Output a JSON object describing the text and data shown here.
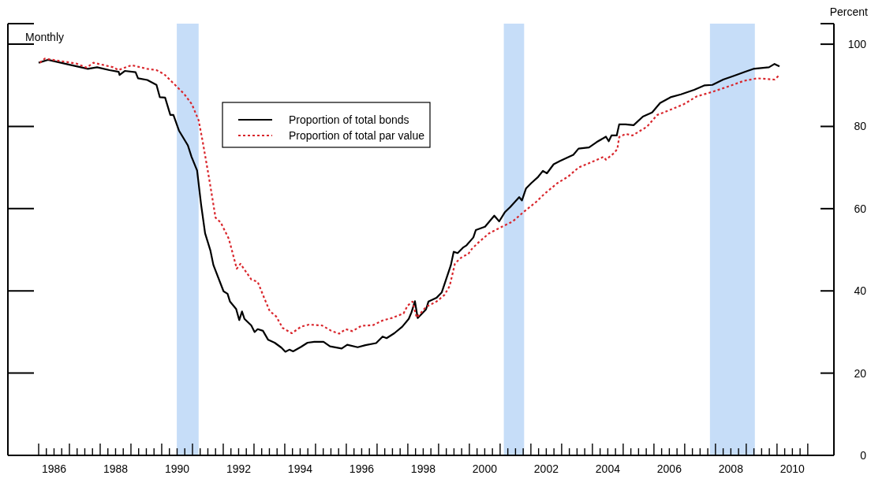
{
  "chart_data": {
    "type": "line",
    "ylabel": "Percent",
    "annotations": [
      "Monthly"
    ],
    "legend": "top left",
    "xlim": [
      1985,
      2011.85
    ],
    "ylim": [
      0,
      105
    ],
    "yticks": [
      0,
      20,
      40,
      60,
      80,
      100
    ],
    "xticks": [
      {
        "value": 1986,
        "label": null
      },
      {
        "value": 1986.25,
        "label": null
      },
      {
        "value": 1986.5,
        "label": "1986"
      },
      {
        "value": 1986.75,
        "label": null
      },
      {
        "value": 1987,
        "label": null
      },
      {
        "value": 1987.25,
        "label": null
      },
      {
        "value": 1987.5,
        "label": null
      },
      {
        "value": 1987.75,
        "label": null
      },
      {
        "value": 1988,
        "label": null
      },
      {
        "value": 1988.25,
        "label": null
      },
      {
        "value": 1988.5,
        "label": "1988"
      },
      {
        "value": 1988.75,
        "label": null
      },
      {
        "value": 1989,
        "label": null
      },
      {
        "value": 1989.25,
        "label": null
      },
      {
        "value": 1989.5,
        "label": null
      },
      {
        "value": 1989.75,
        "label": null
      },
      {
        "value": 1990,
        "label": null
      },
      {
        "value": 1990.25,
        "label": null
      },
      {
        "value": 1990.5,
        "label": "1990"
      },
      {
        "value": 1990.75,
        "label": null
      },
      {
        "value": 1991,
        "label": null
      },
      {
        "value": 1991.25,
        "label": null
      },
      {
        "value": 1991.5,
        "label": null
      },
      {
        "value": 1991.75,
        "label": null
      },
      {
        "value": 1992,
        "label": null
      },
      {
        "value": 1992.25,
        "label": null
      },
      {
        "value": 1992.5,
        "label": "1992"
      },
      {
        "value": 1992.75,
        "label": null
      },
      {
        "value": 1993,
        "label": null
      },
      {
        "value": 1993.25,
        "label": null
      },
      {
        "value": 1993.5,
        "label": null
      },
      {
        "value": 1993.75,
        "label": null
      },
      {
        "value": 1994,
        "label": null
      },
      {
        "value": 1994.25,
        "label": null
      },
      {
        "value": 1994.5,
        "label": "1994"
      },
      {
        "value": 1994.75,
        "label": null
      },
      {
        "value": 1995,
        "label": null
      },
      {
        "value": 1995.25,
        "label": null
      },
      {
        "value": 1995.5,
        "label": null
      },
      {
        "value": 1995.75,
        "label": null
      },
      {
        "value": 1996,
        "label": null
      },
      {
        "value": 1996.25,
        "label": null
      },
      {
        "value": 1996.5,
        "label": "1996"
      },
      {
        "value": 1996.75,
        "label": null
      },
      {
        "value": 1997,
        "label": null
      },
      {
        "value": 1997.25,
        "label": null
      },
      {
        "value": 1997.5,
        "label": null
      },
      {
        "value": 1997.75,
        "label": null
      },
      {
        "value": 1998,
        "label": null
      },
      {
        "value": 1998.25,
        "label": null
      },
      {
        "value": 1998.5,
        "label": "1998"
      },
      {
        "value": 1998.75,
        "label": null
      },
      {
        "value": 1999,
        "label": null
      },
      {
        "value": 1999.25,
        "label": null
      },
      {
        "value": 1999.5,
        "label": null
      },
      {
        "value": 1999.75,
        "label": null
      },
      {
        "value": 2000,
        "label": null
      },
      {
        "value": 2000.25,
        "label": null
      },
      {
        "value": 2000.5,
        "label": "2000"
      },
      {
        "value": 2000.75,
        "label": null
      },
      {
        "value": 2001,
        "label": null
      },
      {
        "value": 2001.25,
        "label": null
      },
      {
        "value": 2001.5,
        "label": null
      },
      {
        "value": 2001.75,
        "label": null
      },
      {
        "value": 2002,
        "label": null
      },
      {
        "value": 2002.25,
        "label": null
      },
      {
        "value": 2002.5,
        "label": "2002"
      },
      {
        "value": 2002.75,
        "label": null
      },
      {
        "value": 2003,
        "label": null
      },
      {
        "value": 2003.25,
        "label": null
      },
      {
        "value": 2003.5,
        "label": null
      },
      {
        "value": 2003.75,
        "label": null
      },
      {
        "value": 2004,
        "label": null
      },
      {
        "value": 2004.25,
        "label": null
      },
      {
        "value": 2004.5,
        "label": "2004"
      },
      {
        "value": 2004.75,
        "label": null
      },
      {
        "value": 2005,
        "label": null
      },
      {
        "value": 2005.25,
        "label": null
      },
      {
        "value": 2005.5,
        "label": null
      },
      {
        "value": 2005.75,
        "label": null
      },
      {
        "value": 2006,
        "label": null
      },
      {
        "value": 2006.25,
        "label": null
      },
      {
        "value": 2006.5,
        "label": "2006"
      },
      {
        "value": 2006.75,
        "label": null
      },
      {
        "value": 2007,
        "label": null
      },
      {
        "value": 2007.25,
        "label": null
      },
      {
        "value": 2007.5,
        "label": null
      },
      {
        "value": 2007.75,
        "label": null
      },
      {
        "value": 2008,
        "label": null
      },
      {
        "value": 2008.25,
        "label": null
      },
      {
        "value": 2008.5,
        "label": "2008"
      },
      {
        "value": 2008.75,
        "label": null
      },
      {
        "value": 2009,
        "label": null
      },
      {
        "value": 2009.25,
        "label": null
      },
      {
        "value": 2009.5,
        "label": null
      },
      {
        "value": 2009.75,
        "label": null
      },
      {
        "value": 2010,
        "label": null
      },
      {
        "value": 2010.25,
        "label": null
      },
      {
        "value": 2010.5,
        "label": "2010"
      },
      {
        "value": 2010.75,
        "label": null
      },
      {
        "value": 2011,
        "label": null
      }
    ],
    "bands": [
      {
        "axis": "x",
        "from": 1990.49,
        "to": 1991.2,
        "color": "#c6ddf8"
      },
      {
        "axis": "x",
        "from": 2001.12,
        "to": 2001.78,
        "color": "#c6ddf8"
      },
      {
        "axis": "x",
        "from": 2007.82,
        "to": 2009.28,
        "color": "#c6ddf8"
      }
    ],
    "series": [
      {
        "name": "Proportion of total bonds",
        "color": "#000000",
        "line_style": "solid",
        "x": [
          1986.0,
          1986.3,
          1987.0,
          1987.6,
          1987.9,
          1988.3,
          1988.6,
          1988.63,
          1988.8,
          1989.15,
          1989.23,
          1989.53,
          1989.83,
          1989.94,
          1990.11,
          1990.28,
          1990.38,
          1990.56,
          1990.85,
          1990.97,
          1991.15,
          1991.28,
          1991.41,
          1991.58,
          1991.68,
          1992.01,
          1992.14,
          1992.22,
          1992.42,
          1992.52,
          1992.61,
          1992.69,
          1992.91,
          1993.02,
          1993.12,
          1993.29,
          1993.46,
          1993.67,
          1993.89,
          1994.02,
          1994.15,
          1994.27,
          1994.53,
          1994.74,
          1994.96,
          1995.26,
          1995.47,
          1995.85,
          1996.03,
          1996.37,
          1996.62,
          1996.97,
          1997.18,
          1997.31,
          1997.56,
          1997.82,
          1998.03,
          1998.12,
          1998.23,
          1998.32,
          1998.59,
          1998.67,
          1998.93,
          1999.1,
          1999.4,
          1999.49,
          1999.62,
          1999.79,
          1999.91,
          2000.13,
          2000.21,
          2000.51,
          2000.81,
          2000.97,
          2001.15,
          2001.33,
          2001.62,
          2001.71,
          2001.84,
          2002.01,
          2002.22,
          2002.39,
          2002.52,
          2002.74,
          2002.95,
          2003.38,
          2003.55,
          2003.89,
          2004.14,
          2004.44,
          2004.53,
          2004.62,
          2004.79,
          2004.87,
          2005.08,
          2005.34,
          2005.64,
          2005.94,
          2006.2,
          2006.54,
          2006.88,
          2007.31,
          2007.65,
          2007.9,
          2008.25,
          2008.6,
          2008.97,
          2009.23,
          2009.74,
          2009.92,
          2010.08
        ],
        "values": [
          95.5,
          96.2,
          95,
          94,
          94.4,
          93.7,
          93.3,
          92.5,
          93.5,
          93.2,
          91.7,
          91.3,
          90.1,
          87.1,
          87,
          82.8,
          82.8,
          79,
          75.4,
          72.6,
          69.3,
          61,
          54,
          49.9,
          46.3,
          39.9,
          39.3,
          37.4,
          35.6,
          32.9,
          35,
          33.2,
          31.6,
          30,
          30.7,
          30.3,
          28.1,
          27.4,
          26.2,
          25.2,
          25.7,
          25.3,
          26.4,
          27.4,
          27.6,
          27.6,
          26.5,
          26,
          26.9,
          26.3,
          26.8,
          27.3,
          28.9,
          28.5,
          29.7,
          31.3,
          33.2,
          34.8,
          37.5,
          33.4,
          35.5,
          37.4,
          38.3,
          39.6,
          46.3,
          49.5,
          49.2,
          50.5,
          51.1,
          53,
          54.8,
          55.6,
          58.3,
          56.9,
          59.1,
          60.4,
          62.8,
          62,
          64.9,
          66.2,
          67.6,
          69.2,
          68.6,
          70.8,
          71.6,
          73.1,
          74.6,
          74.9,
          76.2,
          77.5,
          76.4,
          77.8,
          77.8,
          80.5,
          80.5,
          80.3,
          82.4,
          83.4,
          85.7,
          87.1,
          87.8,
          88.9,
          90,
          90.1,
          91.4,
          92.3,
          93.3,
          94,
          94.4,
          95.2,
          94.6
        ]
      },
      {
        "name": "Proportion of total par value",
        "color": "#d9262c",
        "line_style": "dotted",
        "x": [
          1986.04,
          1986.2,
          1986.45,
          1987.22,
          1987.56,
          1987.78,
          1988.42,
          1988.59,
          1989.02,
          1989.53,
          1989.83,
          1990.08,
          1990.38,
          1990.73,
          1990.98,
          1991.2,
          1991.33,
          1991.54,
          1991.75,
          1991.88,
          1991.92,
          1992.18,
          1992.44,
          1992.56,
          1992.91,
          1993.12,
          1993.33,
          1993.51,
          1993.72,
          1993.93,
          1994.23,
          1994.53,
          1994.79,
          1995.21,
          1995.51,
          1995.77,
          1995.98,
          1996.2,
          1996.49,
          1996.88,
          1997.18,
          1997.48,
          1997.86,
          1997.99,
          1998.15,
          1998.29,
          1998.59,
          1998.93,
          1999.19,
          1999.36,
          1999.53,
          1999.7,
          1999.79,
          1999.96,
          2000.08,
          2000.3,
          2000.64,
          2000.98,
          2001.41,
          2001.75,
          2002.18,
          2002.44,
          2002.86,
          2003.21,
          2003.55,
          2004.06,
          2004.36,
          2004.44,
          2004.7,
          2004.81,
          2004.87,
          2005.08,
          2005.3,
          2005.77,
          2006.11,
          2006.45,
          2006.97,
          2007.39,
          2007.9,
          2008.33,
          2008.93,
          2009.36,
          2009.92,
          2010.08
        ],
        "values": [
          95.5,
          96.5,
          96.2,
          95.3,
          94.3,
          95.5,
          94.4,
          93.7,
          94.9,
          94,
          93.7,
          92.7,
          90.5,
          87.9,
          85.4,
          81.5,
          76.4,
          67.4,
          57.8,
          56.9,
          56.6,
          52.7,
          45.4,
          46.6,
          42.8,
          42.2,
          38.3,
          35.1,
          33.8,
          31,
          29.7,
          31.3,
          31.8,
          31.6,
          30.3,
          29.6,
          30.7,
          30.2,
          31.5,
          31.7,
          32.8,
          33.4,
          34.5,
          36.4,
          37.4,
          33.5,
          36.1,
          37.4,
          39,
          41.2,
          46.6,
          47.9,
          48.4,
          48.9,
          50.2,
          51.8,
          54,
          55.3,
          56.9,
          59.1,
          61.7,
          63.6,
          66.2,
          67.8,
          70,
          71.6,
          72.6,
          71.9,
          73.5,
          74.5,
          77.4,
          78.2,
          77.8,
          79.9,
          82.8,
          83.8,
          85.4,
          87.3,
          88.4,
          89.5,
          91.1,
          91.7,
          91.4,
          92.5
        ]
      }
    ]
  }
}
